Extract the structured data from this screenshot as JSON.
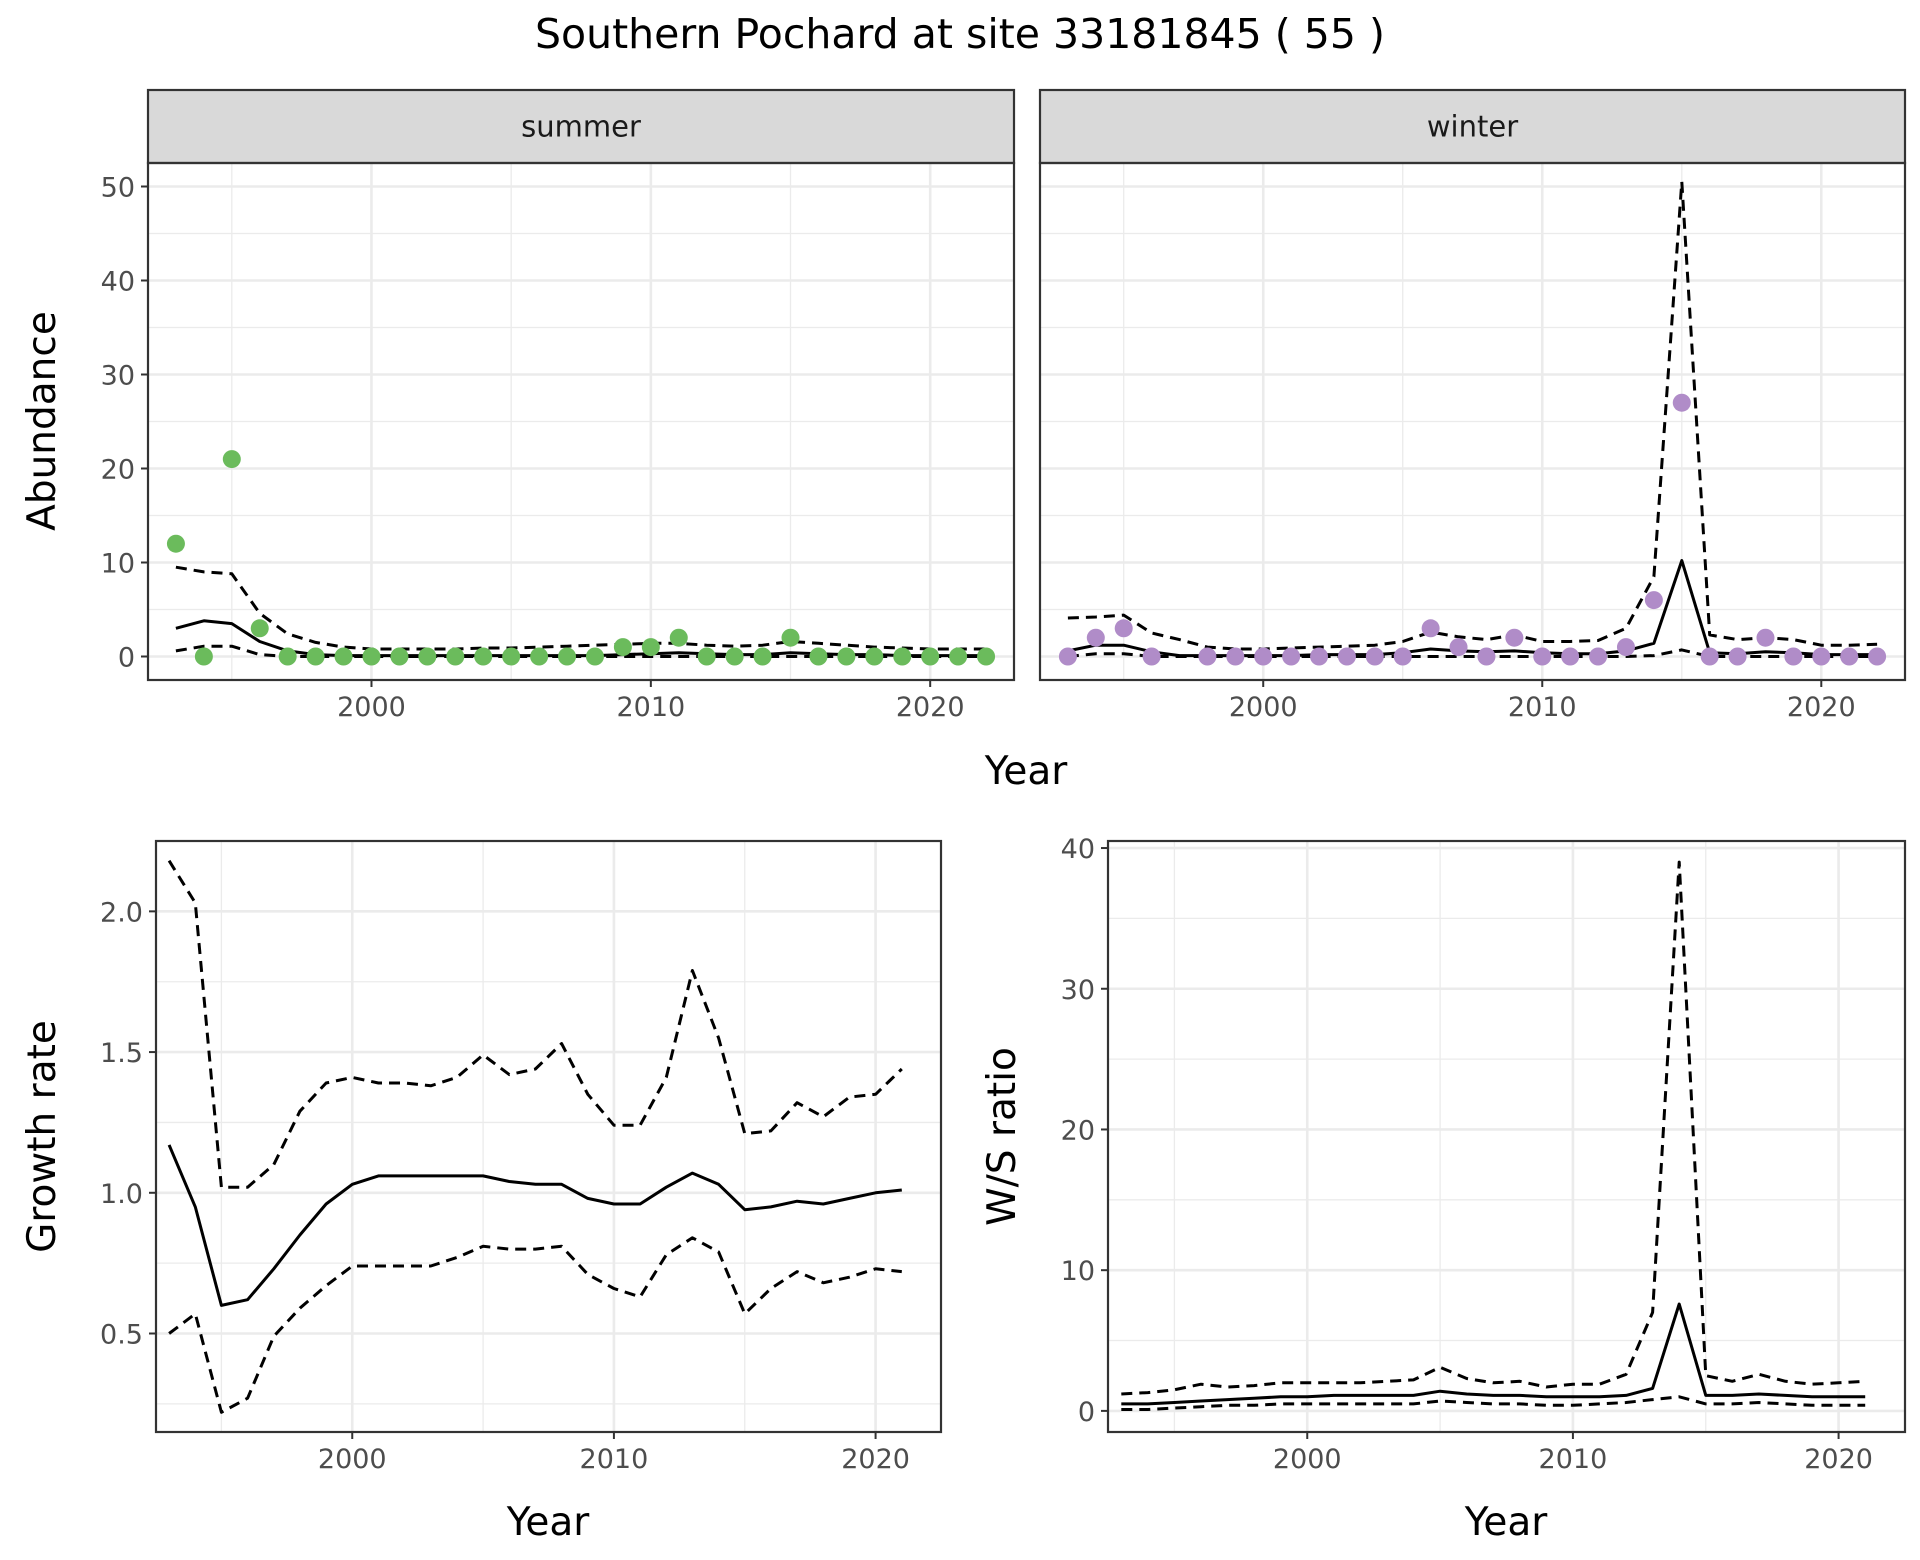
{
  "title": "Southern Pochard at site 33181845 ( 55 )",
  "colors": {
    "summer": "#6bbb5c",
    "winter": "#b08cc8",
    "line": "#000000",
    "strip": "#d9d9d9",
    "grid": "#ebebeb"
  },
  "chart_data": [
    {
      "id": "abundance",
      "type": "scatter",
      "ylabel": "Abundance",
      "xlabel": "Year",
      "xlim": [
        1992,
        2023
      ],
      "ylim": [
        -2.5,
        52.5
      ],
      "xticks": [
        2000,
        2010,
        2020
      ],
      "yticks": [
        0,
        10,
        20,
        30,
        40,
        50
      ],
      "grid": true,
      "facets": [
        {
          "strip": "summer",
          "point_color": "#6bbb5c",
          "points": {
            "x": [
              1993,
              1994,
              1995,
              1996,
              1997,
              1998,
              1999,
              2000,
              2001,
              2002,
              2003,
              2004,
              2005,
              2006,
              2007,
              2008,
              2009,
              2010,
              2011,
              2012,
              2013,
              2014,
              2015,
              2016,
              2017,
              2018,
              2019,
              2020,
              2021,
              2022
            ],
            "y": [
              12,
              0,
              21,
              3,
              0,
              0,
              0,
              0,
              0,
              0,
              0,
              0,
              0,
              0,
              0,
              0,
              1,
              1,
              2,
              0,
              0,
              0,
              2,
              0,
              0,
              0,
              0,
              0,
              0,
              0
            ]
          },
          "estimate": {
            "x": [
              1993,
              1994,
              1995,
              1996,
              1997,
              1998,
              1999,
              2000,
              2001,
              2002,
              2003,
              2004,
              2005,
              2006,
              2007,
              2008,
              2009,
              2010,
              2011,
              2012,
              2013,
              2014,
              2015,
              2016,
              2017,
              2018,
              2019,
              2020,
              2021,
              2022
            ],
            "y": [
              3.0,
              3.8,
              3.5,
              1.6,
              0.6,
              0.2,
              0.1,
              0.1,
              0.1,
              0.1,
              0.1,
              0.1,
              0.1,
              0.1,
              0.1,
              0.1,
              0.2,
              0.3,
              0.4,
              0.3,
              0.2,
              0.2,
              0.4,
              0.3,
              0.2,
              0.2,
              0.1,
              0.1,
              0.1,
              0.1
            ]
          },
          "upper": {
            "x": [
              1993,
              1994,
              1995,
              1996,
              1997,
              1998,
              1999,
              2000,
              2001,
              2002,
              2003,
              2004,
              2005,
              2006,
              2007,
              2008,
              2009,
              2010,
              2011,
              2012,
              2013,
              2014,
              2015,
              2016,
              2017,
              2018,
              2019,
              2020,
              2021,
              2022
            ],
            "y": [
              9.5,
              9.0,
              8.8,
              4.6,
              2.4,
              1.5,
              1.0,
              0.8,
              0.8,
              0.8,
              0.8,
              0.9,
              0.9,
              1.0,
              1.1,
              1.2,
              1.3,
              1.4,
              1.4,
              1.2,
              1.1,
              1.2,
              1.6,
              1.4,
              1.2,
              1.0,
              0.9,
              0.8,
              0.8,
              0.8
            ]
          },
          "lower": {
            "x": [
              1993,
              1994,
              1995,
              1996,
              1997,
              1998,
              1999,
              2000,
              2001,
              2002,
              2003,
              2004,
              2005,
              2006,
              2007,
              2008,
              2009,
              2010,
              2011,
              2012,
              2013,
              2014,
              2015,
              2016,
              2017,
              2018,
              2019,
              2020,
              2021,
              2022
            ],
            "y": [
              0.6,
              1.1,
              1.1,
              0.2,
              0.0,
              0.0,
              0.0,
              0.0,
              0.0,
              0.0,
              0.0,
              0.0,
              0.0,
              0.0,
              0.0,
              0.0,
              0.0,
              0.0,
              0.0,
              0.0,
              0.0,
              0.0,
              0.0,
              0.0,
              0.0,
              0.0,
              0.0,
              0.0,
              0.0,
              0.0
            ]
          }
        },
        {
          "strip": "winter",
          "point_color": "#b08cc8",
          "points": {
            "x": [
              1993,
              1994,
              1995,
              1996,
              1998,
              1999,
              2000,
              2001,
              2002,
              2003,
              2004,
              2005,
              2006,
              2007,
              2008,
              2009,
              2010,
              2011,
              2012,
              2013,
              2014,
              2015,
              2016,
              2017,
              2018,
              2019,
              2020,
              2021,
              2022
            ],
            "y": [
              0,
              2,
              3,
              0,
              0,
              0,
              0,
              0,
              0,
              0,
              0,
              0,
              3,
              1,
              0,
              2,
              0,
              0,
              0,
              1,
              6,
              27,
              0,
              0,
              2,
              0,
              0,
              0,
              0
            ]
          },
          "estimate": {
            "x": [
              1993,
              1994,
              1995,
              1996,
              1997,
              1998,
              1999,
              2000,
              2001,
              2002,
              2003,
              2004,
              2005,
              2006,
              2007,
              2008,
              2009,
              2010,
              2011,
              2012,
              2013,
              2014,
              2015,
              2016,
              2017,
              2018,
              2019,
              2020,
              2021,
              2022
            ],
            "y": [
              0.6,
              1.2,
              1.2,
              0.5,
              0.1,
              0.1,
              0.1,
              0.1,
              0.1,
              0.2,
              0.2,
              0.2,
              0.4,
              0.8,
              0.6,
              0.5,
              0.6,
              0.4,
              0.3,
              0.3,
              0.6,
              1.4,
              10.2,
              0.4,
              0.3,
              0.5,
              0.4,
              0.2,
              0.2,
              0.2
            ]
          },
          "upper": {
            "x": [
              1993,
              1994,
              1995,
              1996,
              1997,
              1998,
              1999,
              2000,
              2001,
              2002,
              2003,
              2004,
              2005,
              2006,
              2007,
              2008,
              2009,
              2010,
              2011,
              2012,
              2013,
              2014,
              2015,
              2016,
              2017,
              2018,
              2019,
              2020,
              2021,
              2022
            ],
            "y": [
              4.1,
              4.2,
              4.4,
              2.5,
              1.8,
              1.0,
              0.8,
              0.8,
              0.9,
              1.0,
              1.1,
              1.2,
              1.6,
              2.6,
              2.1,
              1.8,
              2.3,
              1.6,
              1.6,
              1.7,
              3.0,
              8.5,
              50.5,
              2.3,
              1.8,
              2.0,
              1.8,
              1.2,
              1.2,
              1.3
            ]
          },
          "lower": {
            "x": [
              1993,
              1994,
              1995,
              1996,
              1997,
              1998,
              1999,
              2000,
              2001,
              2002,
              2003,
              2004,
              2005,
              2006,
              2007,
              2008,
              2009,
              2010,
              2011,
              2012,
              2013,
              2014,
              2015,
              2016,
              2017,
              2018,
              2019,
              2020,
              2021,
              2022
            ],
            "y": [
              0.0,
              0.3,
              0.3,
              0.0,
              0.0,
              0.0,
              0.0,
              0.0,
              0.0,
              0.0,
              0.0,
              0.0,
              0.0,
              0.0,
              0.0,
              0.0,
              0.0,
              0.0,
              0.0,
              0.0,
              0.0,
              0.1,
              0.7,
              0.0,
              0.0,
              0.0,
              0.0,
              0.0,
              0.0,
              0.0
            ]
          }
        }
      ]
    },
    {
      "id": "growth",
      "type": "line",
      "ylabel": "Growth rate",
      "xlabel": "Year",
      "xlim": [
        1992.5,
        2022.5
      ],
      "ylim": [
        0.15,
        2.25
      ],
      "xticks": [
        2000,
        2010,
        2020
      ],
      "yticks": [
        0.5,
        1.0,
        1.5,
        2.0
      ],
      "ytick_labels": [
        "0.5",
        "1.0",
        "1.5",
        "2.0"
      ],
      "grid": true,
      "estimate": {
        "x": [
          1993,
          1994,
          1995,
          1996,
          1997,
          1998,
          1999,
          2000,
          2001,
          2002,
          2003,
          2004,
          2005,
          2006,
          2007,
          2008,
          2009,
          2010,
          2011,
          2012,
          2013,
          2014,
          2015,
          2016,
          2017,
          2018,
          2019,
          2020,
          2021
        ],
        "y": [
          1.17,
          0.95,
          0.6,
          0.62,
          0.73,
          0.85,
          0.96,
          1.03,
          1.06,
          1.06,
          1.06,
          1.06,
          1.06,
          1.04,
          1.03,
          1.03,
          0.98,
          0.96,
          0.96,
          1.02,
          1.07,
          1.03,
          0.94,
          0.95,
          0.97,
          0.96,
          0.98,
          1.0,
          1.01
        ]
      },
      "upper": {
        "x": [
          1993,
          1994,
          1995,
          1996,
          1997,
          1998,
          1999,
          2000,
          2001,
          2002,
          2003,
          2004,
          2005,
          2006,
          2007,
          2008,
          2009,
          2010,
          2011,
          2012,
          2013,
          2014,
          2015,
          2016,
          2017,
          2018,
          2019,
          2020,
          2021
        ],
        "y": [
          2.18,
          2.03,
          1.02,
          1.02,
          1.1,
          1.29,
          1.39,
          1.41,
          1.39,
          1.39,
          1.38,
          1.41,
          1.49,
          1.42,
          1.44,
          1.53,
          1.35,
          1.24,
          1.24,
          1.41,
          1.79,
          1.55,
          1.21,
          1.22,
          1.32,
          1.27,
          1.34,
          1.35,
          1.44
        ]
      },
      "lower": {
        "x": [
          1993,
          1994,
          1995,
          1996,
          1997,
          1998,
          1999,
          2000,
          2001,
          2002,
          2003,
          2004,
          2005,
          2006,
          2007,
          2008,
          2009,
          2010,
          2011,
          2012,
          2013,
          2014,
          2015,
          2016,
          2017,
          2018,
          2019,
          2020,
          2021
        ],
        "y": [
          0.5,
          0.57,
          0.22,
          0.27,
          0.49,
          0.59,
          0.67,
          0.74,
          0.74,
          0.74,
          0.74,
          0.77,
          0.81,
          0.8,
          0.8,
          0.81,
          0.71,
          0.66,
          0.63,
          0.78,
          0.84,
          0.79,
          0.57,
          0.66,
          0.72,
          0.68,
          0.7,
          0.73,
          0.72
        ]
      }
    },
    {
      "id": "ratio",
      "type": "line",
      "ylabel": "W/S ratio",
      "xlabel": "Year",
      "xlim": [
        1992.5,
        2022.5
      ],
      "ylim": [
        -1.5,
        40.5
      ],
      "xticks": [
        2000,
        2010,
        2020
      ],
      "yticks": [
        0,
        10,
        20,
        30,
        40
      ],
      "grid": true,
      "estimate": {
        "x": [
          1993,
          1994,
          1995,
          1996,
          1997,
          1998,
          1999,
          2000,
          2001,
          2002,
          2003,
          2004,
          2005,
          2006,
          2007,
          2008,
          2009,
          2010,
          2011,
          2012,
          2013,
          2014,
          2015,
          2016,
          2017,
          2018,
          2019,
          2020,
          2021
        ],
        "y": [
          0.5,
          0.5,
          0.6,
          0.7,
          0.8,
          0.9,
          1.0,
          1.0,
          1.1,
          1.1,
          1.1,
          1.1,
          1.4,
          1.2,
          1.1,
          1.1,
          1.0,
          1.0,
          1.0,
          1.1,
          1.6,
          7.6,
          1.1,
          1.1,
          1.2,
          1.1,
          1.0,
          1.0,
          1.0
        ]
      },
      "upper": {
        "x": [
          1993,
          1994,
          1995,
          1996,
          1997,
          1998,
          1999,
          2000,
          2001,
          2002,
          2003,
          2004,
          2005,
          2006,
          2007,
          2008,
          2009,
          2010,
          2011,
          2012,
          2013,
          2014,
          2015,
          2016,
          2017,
          2018,
          2019,
          2020,
          2021
        ],
        "y": [
          1.2,
          1.3,
          1.5,
          1.9,
          1.7,
          1.8,
          2.0,
          2.0,
          2.0,
          2.0,
          2.1,
          2.2,
          3.1,
          2.3,
          2.0,
          2.1,
          1.7,
          1.9,
          1.9,
          2.6,
          7.0,
          39.0,
          2.5,
          2.1,
          2.6,
          2.1,
          1.9,
          2.0,
          2.1
        ]
      },
      "lower": {
        "x": [
          1993,
          1994,
          1995,
          1996,
          1997,
          1998,
          1999,
          2000,
          2001,
          2002,
          2003,
          2004,
          2005,
          2006,
          2007,
          2008,
          2009,
          2010,
          2011,
          2012,
          2013,
          2014,
          2015,
          2016,
          2017,
          2018,
          2019,
          2020,
          2021
        ],
        "y": [
          0.1,
          0.1,
          0.2,
          0.3,
          0.4,
          0.4,
          0.5,
          0.5,
          0.5,
          0.5,
          0.5,
          0.5,
          0.7,
          0.6,
          0.5,
          0.5,
          0.4,
          0.4,
          0.5,
          0.6,
          0.8,
          1.0,
          0.5,
          0.5,
          0.6,
          0.5,
          0.4,
          0.4,
          0.4
        ]
      }
    }
  ]
}
